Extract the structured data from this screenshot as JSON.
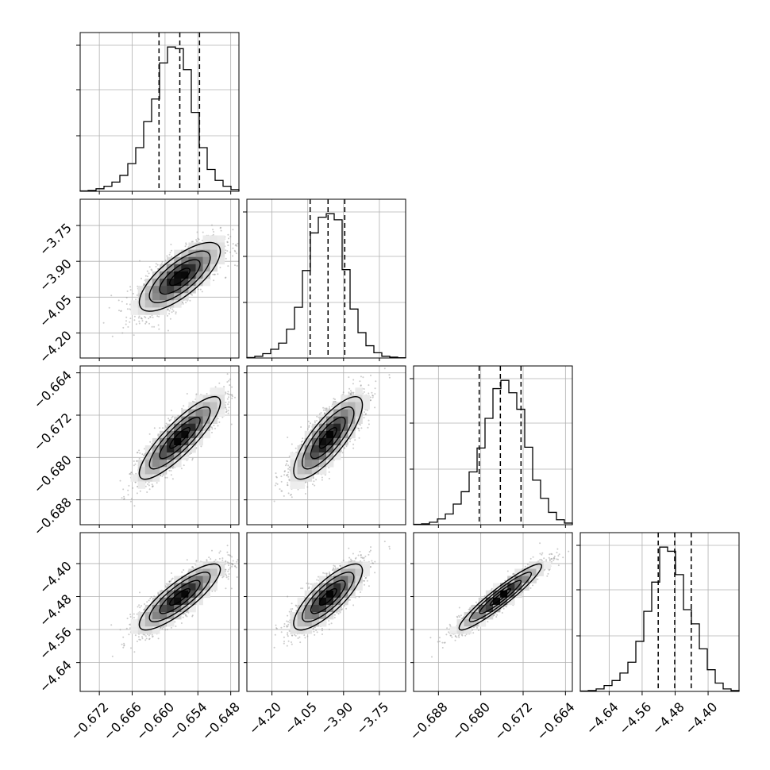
{
  "chart_data": {
    "type": "corner",
    "parameters": [
      {
        "range": [
          -0.6755,
          -0.6465
        ],
        "ticks": [
          -0.672,
          -0.666,
          -0.66,
          -0.654,
          -0.648
        ],
        "tick_labels": [
          "−0.672",
          "−0.666",
          "−0.660",
          "−0.654",
          "−0.648"
        ],
        "quantiles": [
          -0.6611,
          -0.6573,
          -0.6537
        ],
        "histogram": [
          0.5,
          1,
          3,
          6,
          11,
          19,
          33,
          52,
          83,
          110,
          153,
          172,
          170,
          145,
          94,
          52,
          26,
          13,
          6,
          2
        ]
      },
      {
        "range": [
          -4.305,
          -3.64
        ],
        "ticks": [
          -4.2,
          -4.05,
          -3.9,
          -3.75
        ],
        "tick_labels": [
          "−4.20",
          "−4.05",
          "−3.90",
          "−3.75"
        ],
        "quantiles": [
          -4.04,
          -3.965,
          -3.895
        ],
        "histogram": [
          0.5,
          2,
          5,
          10,
          17,
          33,
          58,
          100,
          143,
          161,
          165,
          158,
          101,
          56,
          29,
          14,
          6,
          2,
          1,
          0.3
        ]
      },
      {
        "range": [
          -0.6927,
          -0.6627
        ],
        "ticks": [
          -0.688,
          -0.68,
          -0.672,
          -0.664
        ],
        "tick_labels": [
          "−0.688",
          "−0.680",
          "−0.672",
          "−0.664"
        ],
        "quantiles": [
          -0.6803,
          -0.6763,
          -0.6724
        ],
        "histogram": [
          0.5,
          1,
          3,
          7,
          13,
          25,
          40,
          64,
          93,
          129,
          165,
          175,
          160,
          140,
          94,
          54,
          32,
          15,
          6,
          2
        ]
      },
      {
        "range": [
          -4.71,
          -4.325
        ],
        "ticks": [
          -4.64,
          -4.56,
          -4.48,
          -4.4
        ],
        "tick_labels": [
          "−4.64",
          "−4.56",
          "−4.48",
          "−4.40"
        ],
        "quantiles": [
          -4.521,
          -4.481,
          -4.441
        ],
        "histogram": [
          0.5,
          1,
          3,
          7,
          13,
          22,
          35,
          60,
          96,
          131,
          173,
          168,
          140,
          98,
          81,
          51,
          26,
          10,
          3,
          1
        ]
      }
    ],
    "pairs": [
      {
        "x": 0,
        "y": 1,
        "center": [
          -0.6573,
          -3.965
        ],
        "sd": [
          0.0037,
          0.072
        ],
        "rho": 0.74
      },
      {
        "x": 0,
        "y": 2,
        "center": [
          -0.6573,
          -0.6763
        ],
        "sd": [
          0.0037,
          0.0039
        ],
        "rho": 0.86
      },
      {
        "x": 1,
        "y": 2,
        "center": [
          -3.965,
          -0.6763
        ],
        "sd": [
          0.072,
          0.0039
        ],
        "rho": 0.8
      },
      {
        "x": 0,
        "y": 3,
        "center": [
          -0.6573,
          -4.481
        ],
        "sd": [
          0.0037,
          0.04
        ],
        "rho": 0.84
      },
      {
        "x": 1,
        "y": 3,
        "center": [
          -3.965,
          -4.481
        ],
        "sd": [
          0.072,
          0.04
        ],
        "rho": 0.8
      },
      {
        "x": 2,
        "y": 3,
        "center": [
          -0.6763,
          -4.481
        ],
        "sd": [
          0.0039,
          0.04
        ],
        "rho": 0.94
      }
    ],
    "contour_levels_sigma": [
      0.5,
      1.0,
      1.5,
      2.0
    ],
    "grid": true,
    "colors": {
      "hist": "#000000",
      "points": "#8c8c8c",
      "grid": "#b0b0b0"
    }
  }
}
